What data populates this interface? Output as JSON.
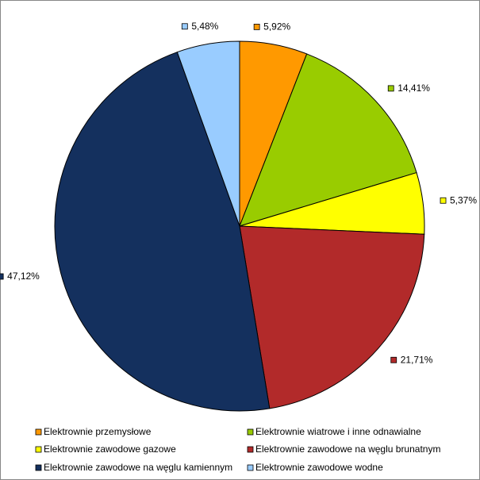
{
  "chart_data": {
    "type": "pie",
    "categories": [
      "Elektrownie przemysłowe",
      "Elektrownie wiatrowe i inne odnawialne",
      "Elektrownie zawodowe gazowe",
      "Elektrownie zawodowe na węglu brunatnym",
      "Elektrownie zawodowe na węglu kamiennym",
      "Elektrownie zawodowe wodne"
    ],
    "values": [
      5.92,
      14.41,
      5.37,
      21.71,
      47.12,
      5.48
    ],
    "value_labels": [
      "5,92%",
      "14,41%",
      "5,37%",
      "21,71%",
      "47,12%",
      "5,48%"
    ],
    "colors": [
      "#ff9900",
      "#99cc00",
      "#ffff00",
      "#b22a2a",
      "#14305e",
      "#99ccff"
    ],
    "legend": "bottom"
  }
}
